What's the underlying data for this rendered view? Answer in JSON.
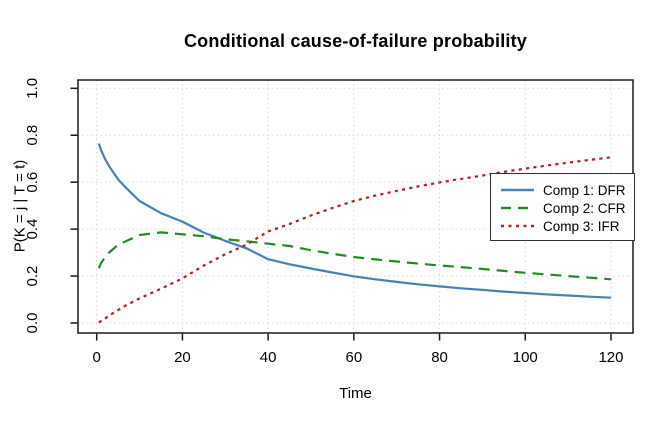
{
  "chart": {
    "title": "Conditional cause-of-failure probability",
    "xlabel": "Time",
    "ylabel": "P(K = j | T = t)"
  },
  "colors": {
    "dfr_blue": "#4682B4",
    "cfr_green": "#228B22",
    "ifr_red": "#B22222",
    "grid": "#D6D6D6",
    "axis": "#1A1A1A",
    "background": "#FFFFFF"
  },
  "legend": {
    "items": [
      {
        "label": "Comp 1: DFR",
        "color": "#4682B4",
        "dash": []
      },
      {
        "label": "Comp 2: CFR",
        "color": "#228B22",
        "dash": [
          10,
          7
        ]
      },
      {
        "label": "Comp 3: IFR",
        "color": "#B22222",
        "dash": [
          3,
          4.5
        ]
      }
    ]
  },
  "chart_data": {
    "type": "line",
    "title": "Conditional cause-of-failure probability",
    "xlabel": "Time",
    "ylabel": "P(K = j | T = t)",
    "xlim": [
      0,
      120
    ],
    "ylim": [
      0,
      1
    ],
    "xticks": [
      0,
      20,
      40,
      60,
      80,
      100,
      120
    ],
    "ytick_labels": [
      "0.0",
      "0.2",
      "0.4",
      "0.6",
      "0.8",
      "1.0"
    ],
    "grid": true,
    "grid_style": "dotted",
    "legend_position": "right-middle",
    "x": [
      0.5,
      1,
      2,
      3,
      5,
      7,
      10,
      15,
      20,
      25,
      30,
      35,
      40,
      45,
      50,
      55,
      60,
      65,
      70,
      75,
      80,
      85,
      90,
      95,
      100,
      105,
      110,
      115,
      120
    ],
    "series": [
      {
        "name": "Comp 1: DFR",
        "style": "solid",
        "color": "#4682B4",
        "values": [
          0.765,
          0.737,
          0.697,
          0.665,
          0.612,
          0.573,
          0.52,
          0.468,
          0.432,
          0.385,
          0.35,
          0.318,
          0.272,
          0.25,
          0.232,
          0.215,
          0.199,
          0.186,
          0.175,
          0.165,
          0.156,
          0.148,
          0.141,
          0.134,
          0.128,
          0.122,
          0.117,
          0.112,
          0.108
        ]
      },
      {
        "name": "Comp 2: CFR",
        "style": "dashed",
        "color": "#228B22",
        "values": [
          0.233,
          0.255,
          0.283,
          0.302,
          0.333,
          0.35,
          0.375,
          0.386,
          0.378,
          0.37,
          0.357,
          0.348,
          0.338,
          0.328,
          0.31,
          0.295,
          0.281,
          0.271,
          0.262,
          0.253,
          0.245,
          0.238,
          0.23,
          0.222,
          0.214,
          0.207,
          0.2,
          0.193,
          0.186
        ]
      },
      {
        "name": "Comp 3: IFR",
        "style": "dotted",
        "color": "#B22222",
        "values": [
          0.002,
          0.008,
          0.02,
          0.033,
          0.055,
          0.077,
          0.105,
          0.146,
          0.19,
          0.245,
          0.293,
          0.334,
          0.39,
          0.422,
          0.458,
          0.49,
          0.52,
          0.543,
          0.563,
          0.582,
          0.599,
          0.614,
          0.628,
          0.644,
          0.658,
          0.671,
          0.683,
          0.695,
          0.706
        ]
      }
    ]
  }
}
